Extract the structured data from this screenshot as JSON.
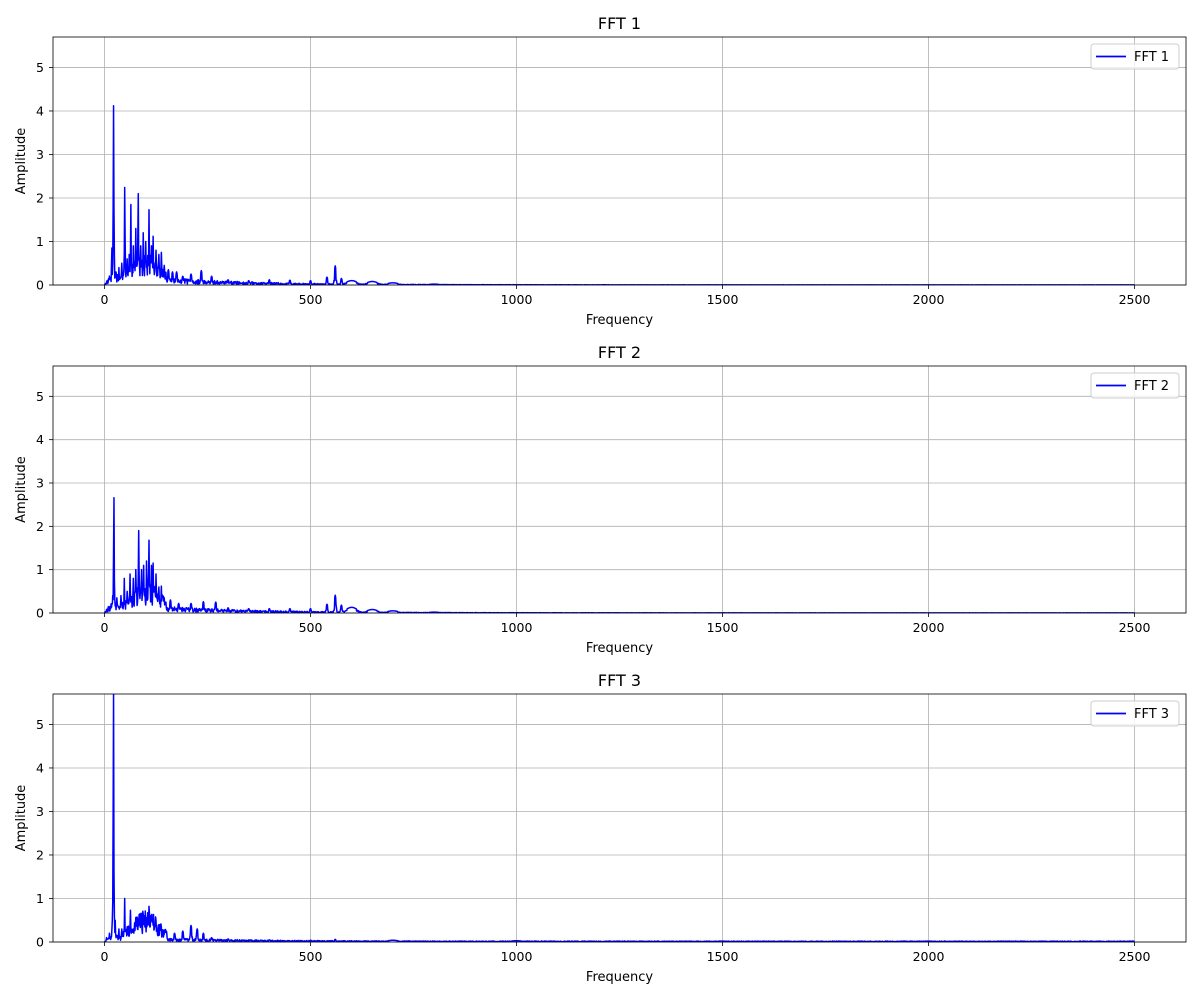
{
  "chart_data": [
    {
      "type": "line",
      "title": "FFT 1",
      "xlabel": "Frequency",
      "ylabel": "Amplitude",
      "xlim": [
        -125,
        2625
      ],
      "ylim": [
        0,
        5.7
      ],
      "xticks": [
        0,
        500,
        1000,
        1500,
        2000,
        2500
      ],
      "yticks": [
        0,
        1,
        2,
        3,
        4,
        5
      ],
      "grid": true,
      "legend_position": "top-right",
      "line_color": "#0000ff",
      "series": [
        {
          "name": "FFT 1",
          "color": "#0000ff"
        }
      ],
      "peaks": [
        [
          5,
          0.05
        ],
        [
          12,
          0.18
        ],
        [
          18,
          0.85
        ],
        [
          22,
          4.12
        ],
        [
          28,
          0.3
        ],
        [
          35,
          0.4
        ],
        [
          42,
          0.5
        ],
        [
          49,
          2.24
        ],
        [
          55,
          0.6
        ],
        [
          60,
          0.7
        ],
        [
          64,
          1.85
        ],
        [
          70,
          0.9
        ],
        [
          76,
          1.3
        ],
        [
          82,
          2.1
        ],
        [
          88,
          0.9
        ],
        [
          94,
          1.2
        ],
        [
          100,
          1.0
        ],
        [
          108,
          1.73
        ],
        [
          114,
          0.9
        ],
        [
          118,
          1.12
        ],
        [
          125,
          0.8
        ],
        [
          132,
          0.7
        ],
        [
          138,
          0.75
        ],
        [
          145,
          0.45
        ],
        [
          155,
          0.35
        ],
        [
          165,
          0.3
        ],
        [
          175,
          0.3
        ],
        [
          190,
          0.2
        ],
        [
          210,
          0.25
        ],
        [
          235,
          0.33
        ],
        [
          260,
          0.2
        ],
        [
          300,
          0.12
        ],
        [
          350,
          0.1
        ],
        [
          400,
          0.12
        ],
        [
          450,
          0.11
        ],
        [
          500,
          0.1
        ],
        [
          540,
          0.18
        ],
        [
          560,
          0.44
        ],
        [
          575,
          0.15
        ],
        [
          600,
          0.1
        ],
        [
          650,
          0.08
        ],
        [
          700,
          0.05
        ],
        [
          800,
          0.02
        ]
      ],
      "background": {
        "base": 0.25,
        "decay": 220,
        "floor": 0.004
      }
    },
    {
      "type": "line",
      "title": "FFT 2",
      "xlabel": "Frequency",
      "ylabel": "Amplitude",
      "xlim": [
        -125,
        2625
      ],
      "ylim": [
        0,
        5.7
      ],
      "xticks": [
        0,
        500,
        1000,
        1500,
        2000,
        2500
      ],
      "yticks": [
        0,
        1,
        2,
        3,
        4,
        5
      ],
      "grid": true,
      "legend_position": "top-right",
      "line_color": "#0000ff",
      "series": [
        {
          "name": "FFT 2",
          "color": "#0000ff"
        }
      ],
      "peaks": [
        [
          5,
          0.05
        ],
        [
          15,
          0.1
        ],
        [
          20,
          0.4
        ],
        [
          23,
          2.66
        ],
        [
          30,
          0.35
        ],
        [
          40,
          0.4
        ],
        [
          48,
          0.8
        ],
        [
          55,
          0.5
        ],
        [
          62,
          0.9
        ],
        [
          70,
          0.8
        ],
        [
          76,
          1.0
        ],
        [
          83,
          1.9
        ],
        [
          90,
          1.0
        ],
        [
          95,
          1.1
        ],
        [
          102,
          1.2
        ],
        [
          108,
          1.68
        ],
        [
          114,
          1.1
        ],
        [
          118,
          1.15
        ],
        [
          125,
          0.9
        ],
        [
          132,
          0.6
        ],
        [
          138,
          0.62
        ],
        [
          145,
          0.35
        ],
        [
          160,
          0.3
        ],
        [
          180,
          0.22
        ],
        [
          210,
          0.22
        ],
        [
          240,
          0.26
        ],
        [
          270,
          0.25
        ],
        [
          300,
          0.12
        ],
        [
          350,
          0.1
        ],
        [
          400,
          0.1
        ],
        [
          450,
          0.1
        ],
        [
          500,
          0.1
        ],
        [
          540,
          0.2
        ],
        [
          560,
          0.41
        ],
        [
          575,
          0.18
        ],
        [
          600,
          0.13
        ],
        [
          650,
          0.08
        ],
        [
          700,
          0.05
        ],
        [
          800,
          0.02
        ]
      ],
      "background": {
        "base": 0.22,
        "decay": 230,
        "floor": 0.004
      }
    },
    {
      "type": "line",
      "title": "FFT 3",
      "xlabel": "Frequency",
      "ylabel": "Amplitude",
      "xlim": [
        -125,
        2625
      ],
      "ylim": [
        0,
        5.7
      ],
      "xticks": [
        0,
        500,
        1000,
        1500,
        2000,
        2500
      ],
      "yticks": [
        0,
        1,
        2,
        3,
        4,
        5
      ],
      "grid": true,
      "legend_position": "top-right",
      "line_color": "#0000ff",
      "series": [
        {
          "name": "FFT 3",
          "color": "#0000ff"
        }
      ],
      "peaks": [
        [
          5,
          0.1
        ],
        [
          12,
          0.2
        ],
        [
          18,
          0.3
        ],
        [
          20,
          0.9
        ],
        [
          22,
          5.7
        ],
        [
          26,
          0.5
        ],
        [
          35,
          0.3
        ],
        [
          42,
          0.3
        ],
        [
          49,
          1.0
        ],
        [
          55,
          0.3
        ],
        [
          63,
          0.73
        ],
        [
          70,
          0.3
        ],
        [
          80,
          0.3
        ],
        [
          88,
          0.45
        ],
        [
          95,
          0.4
        ],
        [
          108,
          0.82
        ],
        [
          115,
          0.5
        ],
        [
          125,
          0.5
        ],
        [
          135,
          0.4
        ],
        [
          150,
          0.25
        ],
        [
          170,
          0.2
        ],
        [
          190,
          0.25
        ],
        [
          210,
          0.38
        ],
        [
          225,
          0.3
        ],
        [
          240,
          0.2
        ],
        [
          260,
          0.1
        ],
        [
          300,
          0.07
        ],
        [
          400,
          0.05
        ],
        [
          500,
          0.04
        ],
        [
          560,
          0.06
        ],
        [
          700,
          0.04
        ],
        [
          1000,
          0.03
        ],
        [
          1500,
          0.02
        ],
        [
          2000,
          0.02
        ],
        [
          2500,
          0.02
        ]
      ],
      "background": {
        "base": 0.12,
        "decay": 200,
        "floor": 0.02
      }
    }
  ]
}
